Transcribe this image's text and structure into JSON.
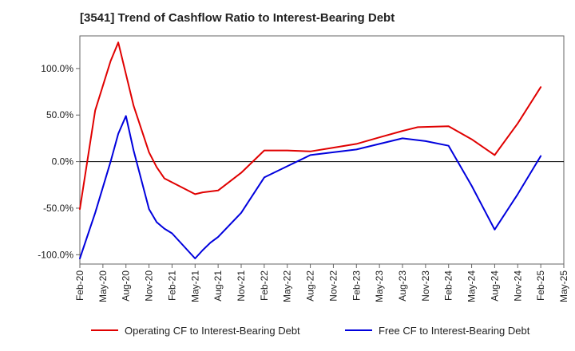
{
  "chart_data": {
    "type": "line",
    "title": "[3541]  Trend of Cashflow Ratio to Interest-Bearing Debt",
    "xlabel": "",
    "ylabel": "",
    "ylim": [
      -110,
      135
    ],
    "yticks": [
      100,
      50,
      0,
      -50,
      -100
    ],
    "ytick_labels": [
      "100.0%",
      "50.0%",
      "0.0%",
      "-50.0%",
      "-100.0%"
    ],
    "x_tick_labels": [
      "Feb-20",
      "May-20",
      "Aug-20",
      "Nov-20",
      "Feb-21",
      "May-21",
      "Aug-21",
      "Nov-21",
      "Feb-22",
      "May-22",
      "Aug-22",
      "Nov-22",
      "Feb-23",
      "May-23",
      "Aug-23",
      "Nov-23",
      "Feb-24",
      "May-24",
      "Aug-24",
      "Nov-24",
      "Feb-25",
      "May-25"
    ],
    "grid": false,
    "zero_line": true,
    "legend_position": "bottom",
    "series": [
      {
        "name": "Operating CF to Interest-Bearing Debt",
        "color": "#e00000",
        "points": [
          [
            "Feb-20",
            -51
          ],
          [
            "Apr-20",
            55
          ],
          [
            "Jun-20",
            108
          ],
          [
            "Jul-20",
            128
          ],
          [
            "Sep-20",
            60
          ],
          [
            "Nov-20",
            10
          ],
          [
            "Dec-20",
            -6
          ],
          [
            "Jan-21",
            -18
          ],
          [
            "May-21",
            -35
          ],
          [
            "Jun-21",
            -33
          ],
          [
            "Aug-21",
            -31
          ],
          [
            "Nov-21",
            -12
          ],
          [
            "Feb-22",
            12
          ],
          [
            "May-22",
            12
          ],
          [
            "Aug-22",
            11
          ],
          [
            "Nov-22",
            15
          ],
          [
            "Feb-23",
            19
          ],
          [
            "May-23",
            26
          ],
          [
            "Aug-23",
            33
          ],
          [
            "Oct-23",
            37
          ],
          [
            "Feb-24",
            38
          ],
          [
            "May-24",
            24
          ],
          [
            "Aug-24",
            7
          ],
          [
            "Nov-24",
            41
          ],
          [
            "Feb-25",
            80
          ]
        ]
      },
      {
        "name": "Free CF to Interest-Bearing Debt",
        "color": "#0000dd",
        "points": [
          [
            "Feb-20",
            -104
          ],
          [
            "Apr-20",
            -55
          ],
          [
            "Jun-20",
            0
          ],
          [
            "Jul-20",
            30
          ],
          [
            "Aug-20",
            49
          ],
          [
            "Sep-20",
            12
          ],
          [
            "Nov-20",
            -51
          ],
          [
            "Dec-20",
            -65
          ],
          [
            "Jan-21",
            -72
          ],
          [
            "Feb-21",
            -77
          ],
          [
            "May-21",
            -104
          ],
          [
            "Jun-21",
            -95
          ],
          [
            "Jul-21",
            -87
          ],
          [
            "Aug-21",
            -81
          ],
          [
            "Nov-21",
            -55
          ],
          [
            "Feb-22",
            -17
          ],
          [
            "May-22",
            -5
          ],
          [
            "Aug-22",
            7
          ],
          [
            "Nov-22",
            10
          ],
          [
            "Feb-23",
            13
          ],
          [
            "May-23",
            19
          ],
          [
            "Aug-23",
            25
          ],
          [
            "Nov-23",
            22
          ],
          [
            "Feb-24",
            17
          ],
          [
            "May-24",
            -26
          ],
          [
            "Aug-24",
            -73
          ],
          [
            "Nov-24",
            -35
          ],
          [
            "Feb-25",
            6
          ]
        ]
      }
    ]
  }
}
